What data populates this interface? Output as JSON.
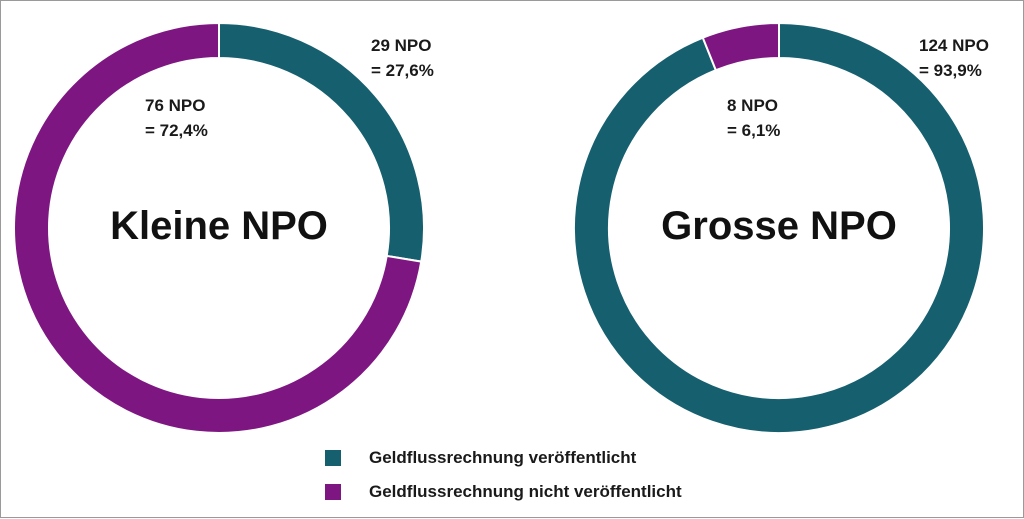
{
  "colors": {
    "published": "#165f6e",
    "not_published": "#7e1682"
  },
  "legend": {
    "items": [
      {
        "label": "Geldflussrechnung veröffentlicht",
        "color": "#165f6e"
      },
      {
        "label": "Geldflussrechnung nicht veröffentlicht",
        "color": "#7e1682"
      }
    ]
  },
  "chart_data": [
    {
      "type": "pie",
      "title": "Kleine NPO",
      "categories": [
        "Geldflussrechnung veröffentlicht",
        "Geldflussrechnung nicht veröffentlicht"
      ],
      "values": [
        29,
        76
      ],
      "percentages": [
        27.6,
        72.4
      ],
      "labels": [
        {
          "line1": "29 NPO",
          "line2": "= 27,6%"
        },
        {
          "line1": "76 NPO",
          "line2": "= 72,4%"
        }
      ]
    },
    {
      "type": "pie",
      "title": "Grosse NPO",
      "categories": [
        "Geldflussrechnung veröffentlicht",
        "Geldflussrechnung nicht veröffentlicht"
      ],
      "values": [
        124,
        8
      ],
      "percentages": [
        93.9,
        6.1
      ],
      "labels": [
        {
          "line1": "124 NPO",
          "line2": "= 93,9%"
        },
        {
          "line1": "8 NPO",
          "line2": "= 6,1%"
        }
      ]
    }
  ]
}
